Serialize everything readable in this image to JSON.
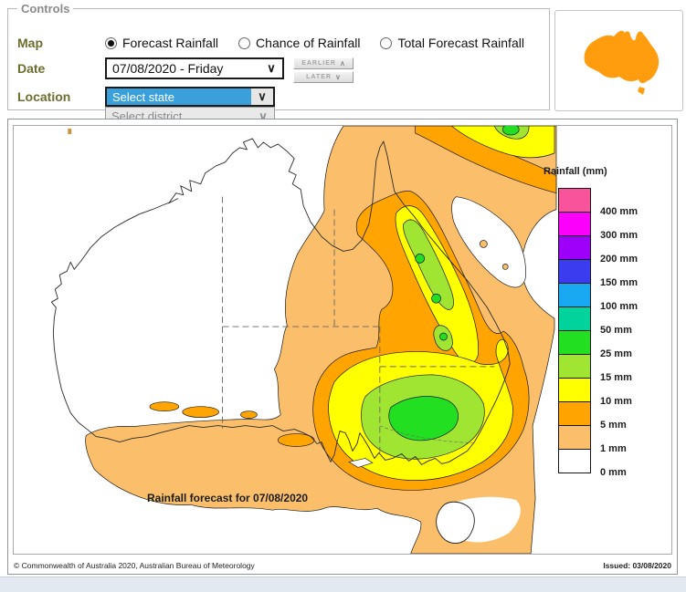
{
  "controls": {
    "legend": "Controls",
    "map_label": "Map",
    "date_label": "Date",
    "location_label": "Location",
    "radios": [
      {
        "label": "Forecast Rainfall",
        "selected": true
      },
      {
        "label": "Chance of Rainfall",
        "selected": false
      },
      {
        "label": "Total Forecast Rainfall",
        "selected": false
      }
    ],
    "date_value": "07/08/2020 - Friday",
    "earlier_label": "EARLIER",
    "later_label": "LATER",
    "state_placeholder": "Select state",
    "district_placeholder": "Select district"
  },
  "map": {
    "annotation": "Rainfall forecast for 07/08/2020",
    "legend_title": "Rainfall (mm)",
    "copyright": "© Commonwealth of Australia 2020, Australian Bureau of Meteorology",
    "issued": "Issued: 03/08/2020",
    "legend": [
      {
        "label": "400 mm",
        "color": "#F8549B"
      },
      {
        "label": "300 mm",
        "color": "#FB00FB"
      },
      {
        "label": "200 mm",
        "color": "#9C00F8"
      },
      {
        "label": "150 mm",
        "color": "#3B3BF0"
      },
      {
        "label": "100 mm",
        "color": "#19A9F2"
      },
      {
        "label": "50 mm",
        "color": "#00D49C"
      },
      {
        "label": "25 mm",
        "color": "#22DF22"
      },
      {
        "label": "15 mm",
        "color": "#9FE532"
      },
      {
        "label": "10 mm",
        "color": "#FFFF00"
      },
      {
        "label": "5 mm",
        "color": "#FFA400"
      },
      {
        "label": "1 mm",
        "color": "#FBBF6C"
      },
      {
        "label": "0 mm",
        "color": "#FFFFFF"
      }
    ],
    "colors": {
      "rain_1mm": "#FBBF6C",
      "rain_5mm": "#FFA400",
      "rain_10mm": "#FFFF00",
      "rain_15mm": "#9FE532",
      "rain_25mm": "#22DF22",
      "coastline": "#2a2a2a",
      "state_border": "#666666",
      "icon_orange": "#FF9D0E",
      "select_highlight": "#39a0dc"
    }
  }
}
